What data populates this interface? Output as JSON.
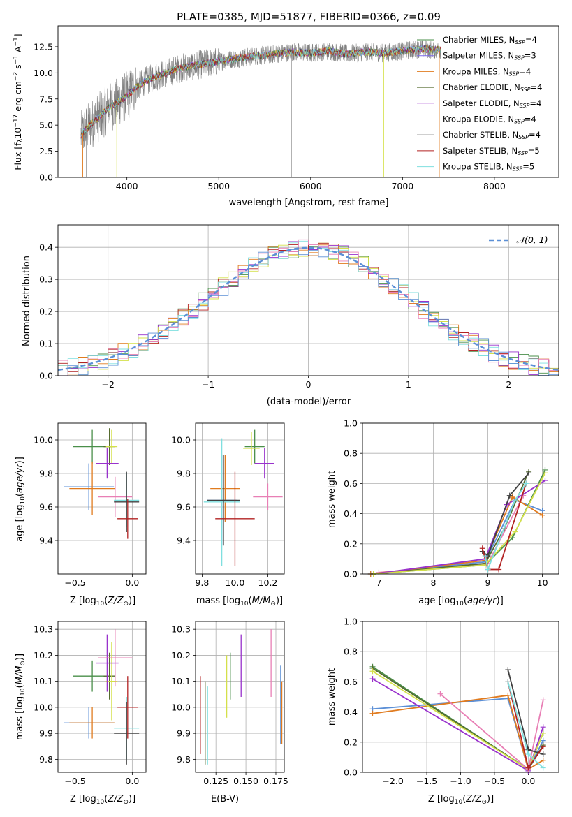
{
  "chart_data": [
    {
      "type": "line",
      "title": "PLATE=0385, MJD=51877, FIBERID=0366, z=0.09",
      "xlabel": "wavelength [Angstrom, rest frame]",
      "ylabel": "Flux [f_λ10^-17 erg cm^-2 s^-1 A^-1]",
      "xlim": [
        3250,
        8700
      ],
      "ylim": [
        0,
        14.5
      ],
      "xticks": [
        "4000",
        "5000",
        "6000",
        "7000",
        "8000"
      ],
      "yticks": [
        "0.0",
        "2.5",
        "5.0",
        "7.5",
        "10.0",
        "12.5"
      ],
      "grid": false,
      "legend": "right",
      "series": [
        {
          "name": "Chabrier MILES, N_SSP=4",
          "color": "#4a8f4a"
        },
        {
          "name": "Salpeter MILES, N_SSP=3",
          "color": "#7b68ee"
        },
        {
          "name": "Kroupa MILES, N_SSP=4",
          "color": "#e07b1f"
        },
        {
          "name": "Chabrier ELODIE, N_SSP=4",
          "color": "#556b2f"
        },
        {
          "name": "Salpeter ELODIE, N_SSP=4",
          "color": "#9932cc"
        },
        {
          "name": "Kroupa ELODIE, N_SSP=4",
          "color": "#d4e04a"
        },
        {
          "name": "Chabrier STELIB, N_SSP=4",
          "color": "#404040"
        },
        {
          "name": "Salpeter STELIB, N_SSP=5",
          "color": "#b22222"
        },
        {
          "name": "Kroupa STELIB, N_SSP=5",
          "color": "#7fdfdf"
        }
      ],
      "data_color": "#808080",
      "continuum": {
        "x": [
          3500,
          3600,
          3700,
          3800,
          3900,
          4000,
          4100,
          4200,
          4300,
          4400,
          4500,
          4600,
          4800,
          5000,
          5200,
          5400,
          5600,
          5800,
          6000,
          6200,
          6400,
          6600,
          6800,
          7000,
          7200,
          7400
        ],
        "y": [
          4.0,
          5.0,
          5.8,
          6.6,
          7.2,
          7.8,
          8.6,
          9.2,
          9.6,
          9.9,
          10.2,
          10.5,
          10.8,
          11.1,
          11.4,
          11.6,
          11.8,
          12.0,
          11.9,
          12.1,
          11.8,
          12.0,
          11.9,
          12.1,
          12.3,
          12.2
        ]
      }
    },
    {
      "type": "line",
      "xlabel": "(data-model)/error",
      "ylabel": "Normed distribution",
      "xlim": [
        -2.5,
        2.5
      ],
      "ylim": [
        0,
        0.47
      ],
      "xticks": [
        "−2",
        "−1",
        "0",
        "1",
        "2"
      ],
      "yticks": [
        "0.0",
        "0.1",
        "0.2",
        "0.3",
        "0.4"
      ],
      "grid": true,
      "legend_entry": "𝒩(0, 1)",
      "legend": "top-right",
      "gaussian_color": "#5b8fd6",
      "hist_colors": [
        "#4a8f4a",
        "#e07b1f",
        "#9932cc",
        "#d4e04a",
        "#b22222",
        "#7fdfdf",
        "#e87fb5",
        "#5b8fd6"
      ]
    },
    {
      "type": "scatter",
      "xlabel": "Z [log10(Z/Z⊙)]",
      "ylabel": "age  [log10(age/yr)]",
      "xlim": [
        -0.65,
        0.12
      ],
      "ylim": [
        9.2,
        10.1
      ],
      "xticks": [
        {
          "v": -0.5,
          "t": "−0.5"
        },
        {
          "v": 0.0,
          "t": "0.0"
        }
      ],
      "yticks": [
        {
          "v": 9.4,
          "t": "9.4"
        },
        {
          "v": 9.6,
          "t": "9.6"
        },
        {
          "v": 9.8,
          "t": "9.8"
        },
        {
          "v": 10.0,
          "t": "10.0"
        }
      ],
      "points": [
        {
          "x": -0.35,
          "y": 9.96,
          "xerr": 0.17,
          "yerr": 0.1,
          "color": "#4a8f4a"
        },
        {
          "x": -0.2,
          "y": 9.96,
          "xerr": 0.05,
          "yerr": 0.11,
          "color": "#556b2f"
        },
        {
          "x": -0.18,
          "y": 9.96,
          "xerr": 0.05,
          "yerr": 0.1,
          "color": "#d4e04a"
        },
        {
          "x": -0.22,
          "y": 9.86,
          "xerr": 0.1,
          "yerr": 0.09,
          "color": "#9932cc"
        },
        {
          "x": -0.38,
          "y": 9.72,
          "xerr": 0.22,
          "yerr": 0.14,
          "color": "#5b8fd6"
        },
        {
          "x": -0.35,
          "y": 9.71,
          "xerr": 0.2,
          "yerr": 0.16,
          "color": "#e07b1f"
        },
        {
          "x": -0.15,
          "y": 9.66,
          "xerr": 0.15,
          "yerr": 0.12,
          "color": "#e87fb5"
        },
        {
          "x": -0.05,
          "y": 9.64,
          "xerr": 0.11,
          "yerr": 0.16,
          "color": "#7fdfdf"
        },
        {
          "x": -0.05,
          "y": 9.63,
          "xerr": 0.11,
          "yerr": 0.18,
          "color": "#404040"
        },
        {
          "x": -0.04,
          "y": 9.53,
          "xerr": 0.09,
          "yerr": 0.12,
          "color": "#b22222"
        }
      ]
    },
    {
      "type": "scatter",
      "xlabel": "mass [log10(M/M⊙)]",
      "xlim": [
        9.76,
        10.3
      ],
      "ylim": [
        9.2,
        10.1
      ],
      "xticks": [
        {
          "v": 9.8,
          "t": "9.8"
        },
        {
          "v": 10.0,
          "t": "10.0"
        },
        {
          "v": 10.2,
          "t": "10.2"
        }
      ],
      "yticks": [
        {
          "v": 9.4,
          "t": "9.4"
        },
        {
          "v": 9.6,
          "t": "9.6"
        },
        {
          "v": 9.8,
          "t": "9.8"
        },
        {
          "v": 10.0,
          "t": "10.0"
        }
      ],
      "points": [
        {
          "x": 10.12,
          "y": 9.96,
          "xerr": 0.06,
          "yerr": 0.1,
          "color": "#4a8f4a"
        },
        {
          "x": 10.1,
          "y": 9.95,
          "xerr": 0.05,
          "yerr": 0.1,
          "color": "#d4e04a"
        },
        {
          "x": 10.18,
          "y": 9.86,
          "xerr": 0.06,
          "yerr": 0.09,
          "color": "#9932cc"
        },
        {
          "x": 10.2,
          "y": 9.66,
          "xerr": 0.09,
          "yerr": 0.08,
          "color": "#e87fb5"
        },
        {
          "x": 9.94,
          "y": 9.71,
          "xerr": 0.09,
          "yerr": 0.2,
          "color": "#e07b1f"
        },
        {
          "x": 9.92,
          "y": 9.64,
          "xerr": 0.09,
          "yerr": 0.27,
          "color": "#5b8fd6"
        },
        {
          "x": 9.92,
          "y": 9.63,
          "xerr": 0.11,
          "yerr": 0.38,
          "color": "#7fdfdf"
        },
        {
          "x": 9.93,
          "y": 9.64,
          "xerr": 0.1,
          "yerr": 0.27,
          "color": "#404040"
        },
        {
          "x": 10.0,
          "y": 9.53,
          "xerr": 0.12,
          "yerr": 0.28,
          "color": "#b22222"
        }
      ]
    },
    {
      "type": "line",
      "xlabel": "age  [log10(age/yr)]",
      "ylabel": "mass weight",
      "xlim": [
        6.7,
        10.3
      ],
      "ylim": [
        0,
        1
      ],
      "grid": true,
      "xticks": [
        {
          "v": 7,
          "t": "7"
        },
        {
          "v": 8,
          "t": "8"
        },
        {
          "v": 9,
          "t": "9"
        },
        {
          "v": 10,
          "t": "10"
        }
      ],
      "yticks": [
        {
          "v": 0,
          "t": "0.0"
        },
        {
          "v": 0.2,
          "t": "0.2"
        },
        {
          "v": 0.4,
          "t": "0.4"
        },
        {
          "v": 0.6,
          "t": "0.6"
        },
        {
          "v": 0.8,
          "t": "0.8"
        },
        {
          "v": 1,
          "t": "1.0"
        }
      ],
      "series": [
        {
          "color": "#e87fb5",
          "x": [
            7.0,
            9.0,
            9.65
          ],
          "y": [
            0.01,
            0.07,
            0.52
          ]
        },
        {
          "color": "#5b8fd6",
          "x": [
            6.85,
            8.95,
            9.5,
            10.0
          ],
          "y": [
            0.0,
            0.08,
            0.49,
            0.42
          ]
        },
        {
          "color": "#e07b1f",
          "x": [
            6.85,
            8.95,
            9.45,
            10.0
          ],
          "y": [
            0.0,
            0.09,
            0.51,
            0.39
          ]
        },
        {
          "color": "#4a8f4a",
          "x": [
            6.9,
            8.95,
            9.45,
            10.05
          ],
          "y": [
            0.0,
            0.06,
            0.24,
            0.69
          ]
        },
        {
          "color": "#556b2f",
          "x": [
            6.9,
            8.95,
            9.3,
            9.75
          ],
          "y": [
            0.0,
            0.07,
            0.3,
            0.68
          ]
        },
        {
          "color": "#9932cc",
          "x": [
            6.9,
            8.95,
            9.35,
            10.05
          ],
          "y": [
            0.0,
            0.1,
            0.46,
            0.62
          ]
        },
        {
          "color": "#d4e04a",
          "x": [
            6.9,
            8.95,
            9.5,
            10.05
          ],
          "y": [
            0.0,
            0.06,
            0.28,
            0.67
          ]
        },
        {
          "color": "#404040",
          "x": [
            8.9,
            9.0,
            9.4,
            9.75
          ],
          "y": [
            0.15,
            0.12,
            0.52,
            0.67
          ]
        },
        {
          "color": "#b22222",
          "x": [
            8.9,
            9.0,
            9.2,
            9.7
          ],
          "y": [
            0.17,
            0.03,
            0.03,
            0.6
          ]
        },
        {
          "color": "#7fdfdf",
          "x": [
            8.95,
            9.0,
            9.5,
            9.7
          ],
          "y": [
            0.12,
            0.03,
            0.49,
            0.6
          ]
        }
      ]
    },
    {
      "type": "scatter",
      "xlabel": "Z [log10(Z/Z⊙)]",
      "ylabel": "mass [log10(M/M⊙)]",
      "xlim": [
        -0.65,
        0.12
      ],
      "ylim": [
        9.75,
        10.33
      ],
      "xticks": [
        {
          "v": -0.5,
          "t": "−0.5"
        },
        {
          "v": 0.0,
          "t": "0.0"
        }
      ],
      "yticks": [
        {
          "v": 9.8,
          "t": "9.8"
        },
        {
          "v": 9.9,
          "t": "9.9"
        },
        {
          "v": 10.0,
          "t": "10.0"
        },
        {
          "v": 10.1,
          "t": "10.1"
        },
        {
          "v": 10.2,
          "t": "10.2"
        },
        {
          "v": 10.3,
          "t": "10.3"
        }
      ],
      "points": [
        {
          "x": -0.35,
          "y": 10.12,
          "xerr": 0.17,
          "yerr": 0.06,
          "color": "#4a8f4a"
        },
        {
          "x": -0.2,
          "y": 10.12,
          "xerr": 0.05,
          "yerr": 0.09,
          "color": "#556b2f"
        },
        {
          "x": -0.18,
          "y": 10.1,
          "xerr": 0.05,
          "yerr": 0.15,
          "color": "#d4e04a"
        },
        {
          "x": -0.22,
          "y": 10.17,
          "xerr": 0.1,
          "yerr": 0.11,
          "color": "#9932cc"
        },
        {
          "x": -0.15,
          "y": 10.19,
          "xerr": 0.15,
          "yerr": 0.11,
          "color": "#e87fb5"
        },
        {
          "x": -0.38,
          "y": 9.94,
          "xerr": 0.22,
          "yerr": 0.06,
          "color": "#5b8fd6"
        },
        {
          "x": -0.35,
          "y": 9.94,
          "xerr": 0.2,
          "yerr": 0.06,
          "color": "#e07b1f"
        },
        {
          "x": -0.05,
          "y": 9.92,
          "xerr": 0.11,
          "yerr": 0.12,
          "color": "#7fdfdf"
        },
        {
          "x": -0.05,
          "y": 9.9,
          "xerr": 0.11,
          "yerr": 0.12,
          "color": "#404040"
        },
        {
          "x": -0.04,
          "y": 10.0,
          "xerr": 0.09,
          "yerr": 0.12,
          "color": "#b22222"
        }
      ]
    },
    {
      "type": "scatter",
      "xlabel": "E(B-V)",
      "xlim": [
        0.108,
        0.182
      ],
      "ylim": [
        9.75,
        10.33
      ],
      "xticks": [
        {
          "v": 0.125,
          "t": "0.125"
        },
        {
          "v": 0.15,
          "t": "0.150"
        },
        {
          "v": 0.175,
          "t": "0.175"
        }
      ],
      "yticks": [
        {
          "v": 9.8,
          "t": "9.8"
        },
        {
          "v": 9.9,
          "t": "9.9"
        },
        {
          "v": 10.0,
          "t": "10.0"
        },
        {
          "v": 10.1,
          "t": "10.1"
        },
        {
          "v": 10.2,
          "t": "10.2"
        },
        {
          "v": 10.3,
          "t": "10.3"
        }
      ],
      "points": [
        {
          "x": 0.112,
          "y": 9.97,
          "yerr": 0.15,
          "color": "#b22222"
        },
        {
          "x": 0.116,
          "y": 9.94,
          "yerr": 0.16,
          "color": "#556b2f"
        },
        {
          "x": 0.118,
          "y": 9.93,
          "yerr": 0.15,
          "color": "#7fdfdf"
        },
        {
          "x": 0.134,
          "y": 10.08,
          "yerr": 0.12,
          "color": "#d4e04a"
        },
        {
          "x": 0.137,
          "y": 10.12,
          "yerr": 0.09,
          "color": "#4a8f4a"
        },
        {
          "x": 0.146,
          "y": 10.16,
          "yerr": 0.12,
          "color": "#9932cc"
        },
        {
          "x": 0.171,
          "y": 10.17,
          "yerr": 0.13,
          "color": "#e87fb5"
        },
        {
          "x": 0.179,
          "y": 10.01,
          "yerr": 0.15,
          "color": "#5b8fd6"
        },
        {
          "x": 0.18,
          "y": 9.98,
          "yerr": 0.12,
          "color": "#e07b1f"
        }
      ]
    },
    {
      "type": "line",
      "xlabel": "Z [log10(Z/Z⊙)]",
      "ylabel": "mass weight",
      "xlim": [
        -2.45,
        0.45
      ],
      "ylim": [
        0,
        1
      ],
      "grid": true,
      "xticks": [
        {
          "v": -2.0,
          "t": "−2.0"
        },
        {
          "v": -1.5,
          "t": "−1.5"
        },
        {
          "v": -1.0,
          "t": "−1.0"
        },
        {
          "v": -0.5,
          "t": "−0.5"
        },
        {
          "v": 0.0,
          "t": "0.0"
        }
      ],
      "yticks": [
        {
          "v": 0,
          "t": "0.0"
        },
        {
          "v": 0.2,
          "t": "0.2"
        },
        {
          "v": 0.4,
          "t": "0.4"
        },
        {
          "v": 0.6,
          "t": "0.6"
        },
        {
          "v": 0.8,
          "t": "0.8"
        },
        {
          "v": 1,
          "t": "1.0"
        }
      ],
      "series": [
        {
          "color": "#5b8fd6",
          "x": [
            -2.3,
            -0.3,
            0.0,
            0.22
          ],
          "y": [
            0.42,
            0.49,
            0.02,
            0.21
          ]
        },
        {
          "color": "#e07b1f",
          "x": [
            -2.3,
            -0.3,
            0.0,
            0.22
          ],
          "y": [
            0.39,
            0.51,
            0.02,
            0.08
          ]
        },
        {
          "color": "#4a8f4a",
          "x": [
            -2.3,
            0.0,
            0.22
          ],
          "y": [
            0.7,
            0.02,
            0.26
          ]
        },
        {
          "color": "#556b2f",
          "x": [
            -2.3,
            0.0,
            0.22
          ],
          "y": [
            0.69,
            0.02,
            0.18
          ]
        },
        {
          "color": "#9932cc",
          "x": [
            -2.3,
            0.0,
            0.22
          ],
          "y": [
            0.62,
            0.01,
            0.3
          ]
        },
        {
          "color": "#d4e04a",
          "x": [
            -2.3,
            0.0,
            0.22
          ],
          "y": [
            0.67,
            0.02,
            0.26
          ]
        },
        {
          "color": "#e87fb5",
          "x": [
            -1.3,
            0.0,
            0.22
          ],
          "y": [
            0.52,
            0.02,
            0.48
          ]
        },
        {
          "color": "#404040",
          "x": [
            -0.3,
            0.0,
            0.22
          ],
          "y": [
            0.68,
            0.15,
            0.12
          ]
        },
        {
          "color": "#b22222",
          "x": [
            -0.3,
            0.0,
            0.22
          ],
          "y": [
            0.6,
            0.03,
            0.17
          ]
        },
        {
          "color": "#7fdfdf",
          "x": [
            -0.3,
            0.0,
            0.22
          ],
          "y": [
            0.6,
            0.12,
            0.03
          ]
        }
      ]
    }
  ]
}
